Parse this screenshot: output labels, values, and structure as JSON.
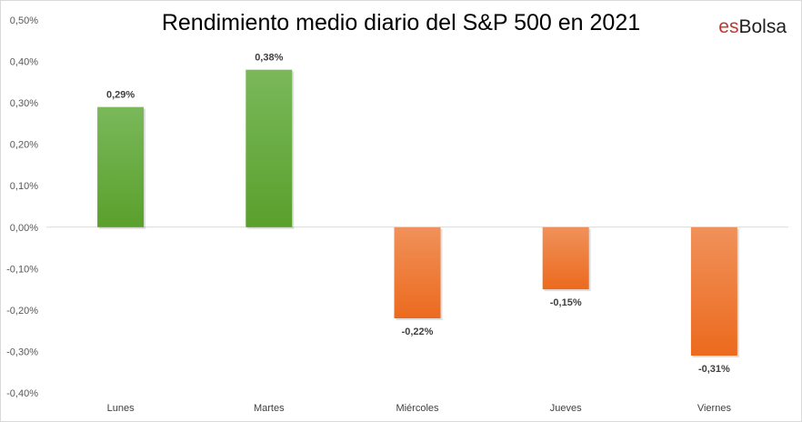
{
  "chart_data": {
    "type": "bar",
    "title": "Rendimiento medio diario del S&P 500 en 2021",
    "categories": [
      "Lunes",
      "Martes",
      "Miércoles",
      "Jueves",
      "Viernes"
    ],
    "values": [
      0.29,
      0.38,
      -0.22,
      -0.15,
      -0.31
    ],
    "data_labels": [
      "0,29%",
      "0,38%",
      "-0,22%",
      "-0,15%",
      "-0,31%"
    ],
    "y_ticks": [
      0.5,
      0.4,
      0.3,
      0.2,
      0.1,
      0.0,
      -0.1,
      -0.2,
      -0.3,
      -0.4
    ],
    "y_tick_labels": [
      "0,50%",
      "0,40%",
      "0,30%",
      "0,20%",
      "0,10%",
      "0,00%",
      "-0,10%",
      "-0,20%",
      "-0,30%",
      "-0,40%"
    ],
    "ylim": [
      -0.4,
      0.5
    ],
    "xlabel": "",
    "ylabel": "",
    "grid": "horizontal zero line only",
    "legend": "none",
    "colors": {
      "positive_top": "#7ab85a",
      "positive_bottom": "#5aa02c",
      "negative_top": "#f0915a",
      "negative_bottom": "#ec6a1e",
      "zero_line": "#d9d9d9"
    }
  },
  "logo": {
    "part1": "es",
    "part2": "Bolsa"
  }
}
